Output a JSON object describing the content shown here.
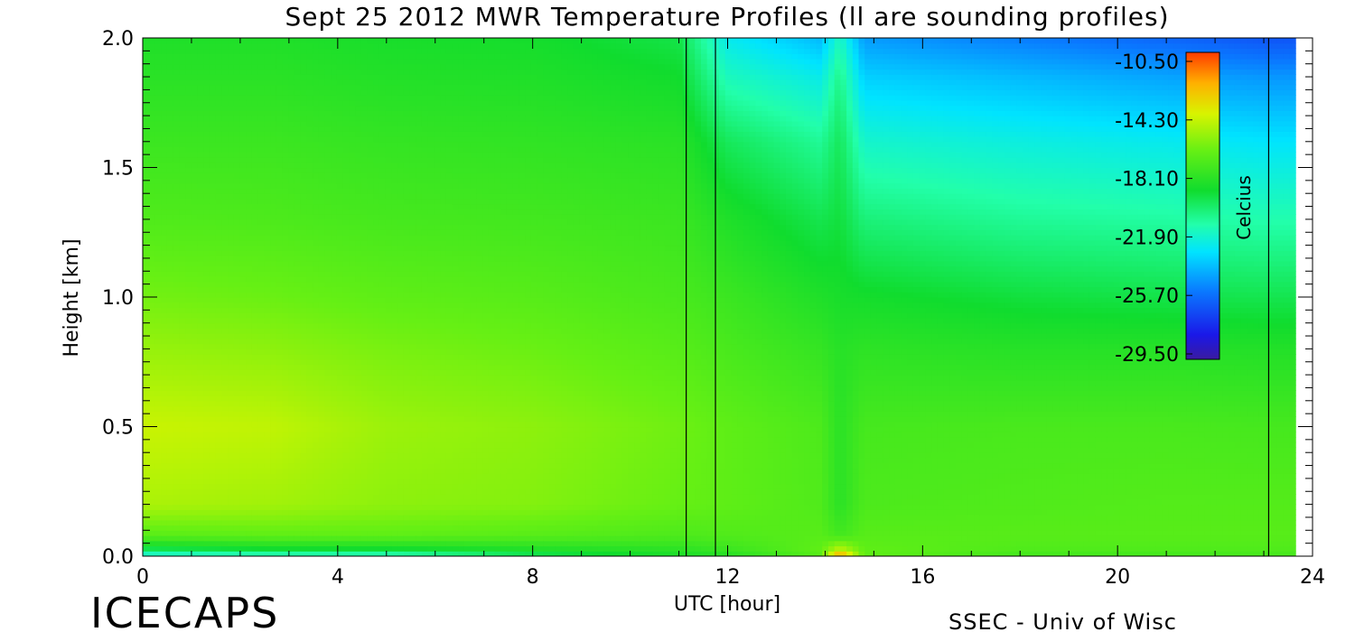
{
  "chart_data": {
    "type": "heatmap",
    "title": "Sept 25 2012 MWR Temperature Profiles (ll are sounding profiles)",
    "xlabel": "UTC [hour]",
    "ylabel": "Height [km]",
    "xlim": [
      0,
      24
    ],
    "ylim": [
      0.0,
      2.0
    ],
    "x_ticks": [
      "0",
      "4",
      "8",
      "12",
      "16",
      "20",
      "24"
    ],
    "y_ticks": [
      "0.0",
      "0.5",
      "1.0",
      "1.5",
      "2.0"
    ],
    "sounding_times_utc": [
      11.15,
      11.75,
      23.1
    ],
    "data_end_utc": 23.65,
    "colorbar": {
      "label": "Celcius",
      "ticks": [
        "-10.50",
        "-14.30",
        "-18.10",
        "-21.90",
        "-25.70",
        "-29.50"
      ],
      "range": [
        -29.5,
        -10.5
      ]
    },
    "height_km": [
      0.0,
      0.03,
      0.08,
      0.2,
      0.5,
      0.8,
      1.0,
      1.3,
      1.6,
      1.85,
      2.0
    ],
    "profiles": [
      {
        "time_utc": 0,
        "temps_c": [
          -22.5,
          -19.5,
          -17.0,
          -15.2,
          -14.6,
          -15.6,
          -16.3,
          -17.2,
          -17.8,
          -18.3,
          -18.6
        ]
      },
      {
        "time_utc": 2.7,
        "temps_c": [
          -22.0,
          -19.0,
          -16.8,
          -15.4,
          -14.8,
          -15.8,
          -16.5,
          -17.3,
          -17.8,
          -18.3,
          -18.6
        ]
      },
      {
        "time_utc": 5,
        "temps_c": [
          -22.0,
          -19.0,
          -16.8,
          -15.8,
          -15.5,
          -16.2,
          -16.8,
          -17.5,
          -18.0,
          -18.5,
          -18.8
        ]
      },
      {
        "time_utc": 8,
        "temps_c": [
          -20.0,
          -18.5,
          -17.0,
          -16.0,
          -15.8,
          -16.5,
          -17.0,
          -17.6,
          -18.1,
          -18.6,
          -18.9
        ]
      },
      {
        "time_utc": 11,
        "temps_c": [
          -18.8,
          -18.2,
          -17.3,
          -16.6,
          -16.4,
          -17.0,
          -17.4,
          -17.8,
          -18.3,
          -19.0,
          -19.5
        ]
      },
      {
        "time_utc": 12,
        "temps_c": [
          -18.5,
          -17.8,
          -17.2,
          -16.8,
          -16.8,
          -17.4,
          -17.8,
          -18.6,
          -19.8,
          -21.5,
          -22.5
        ]
      },
      {
        "time_utc": 13.9,
        "temps_c": [
          -17.0,
          -16.8,
          -17.0,
          -17.2,
          -17.3,
          -18.0,
          -18.6,
          -19.6,
          -20.8,
          -22.4,
          -23.8
        ]
      },
      {
        "time_utc": 14.3,
        "temps_c": [
          -11.5,
          -15.0,
          -17.6,
          -18.3,
          -18.3,
          -18.4,
          -18.8,
          -19.3,
          -19.8,
          -20.6,
          -21.5
        ]
      },
      {
        "time_utc": 14.8,
        "temps_c": [
          -16.8,
          -16.8,
          -17.0,
          -17.3,
          -17.5,
          -18.2,
          -18.9,
          -20.3,
          -21.8,
          -23.3,
          -24.5
        ]
      },
      {
        "time_utc": 18,
        "temps_c": [
          -17.6,
          -17.2,
          -17.0,
          -17.2,
          -17.4,
          -18.4,
          -19.3,
          -20.8,
          -22.2,
          -23.8,
          -25.2
        ]
      },
      {
        "time_utc": 21,
        "temps_c": [
          -17.6,
          -17.2,
          -17.0,
          -17.1,
          -17.4,
          -18.4,
          -19.5,
          -21.0,
          -22.5,
          -24.3,
          -25.8
        ]
      },
      {
        "time_utc": 23.1,
        "temps_c": [
          -17.5,
          -17.2,
          -17.0,
          -17.1,
          -17.5,
          -18.5,
          -19.6,
          -21.2,
          -22.8,
          -24.6,
          -26.3
        ]
      }
    ],
    "grid": false,
    "legend_position": "top-right (inside plot)"
  },
  "footer": {
    "left_logo": "ICECAPS",
    "right_credit": "SSEC - Univ of Wisc"
  }
}
